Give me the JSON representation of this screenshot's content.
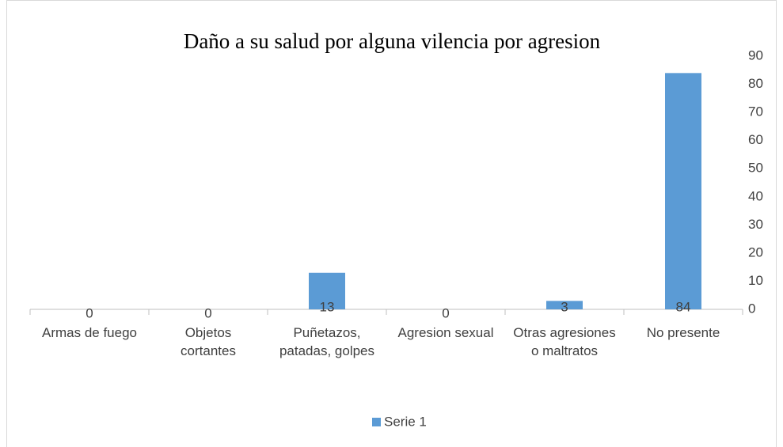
{
  "chart_data": {
    "type": "bar",
    "title": "Daño a su salud por alguna vilencia por agresion",
    "categories": [
      "Armas de fuego",
      "Objetos cortantes",
      "Puñetazos, patadas, golpes",
      "Agresion sexual",
      "Otras agresiones o maltratos",
      "No presente"
    ],
    "series": [
      {
        "name": "Serie 1",
        "color": "#5b9bd5",
        "values": [
          0,
          0,
          13,
          0,
          3,
          84
        ]
      }
    ],
    "ylim": [
      0,
      90
    ],
    "yticks": [
      0,
      10,
      20,
      30,
      40,
      50,
      60,
      70,
      80,
      90
    ],
    "grid": false,
    "legend": "bottom"
  }
}
